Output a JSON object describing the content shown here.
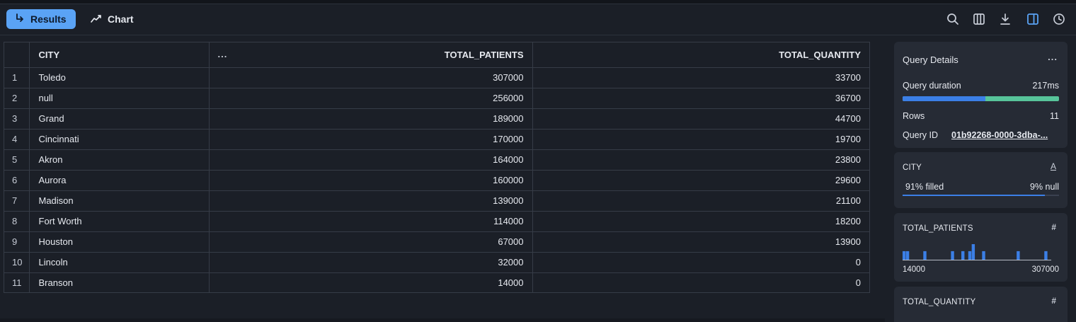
{
  "toolbar": {
    "results_label": "Results",
    "chart_label": "Chart",
    "icons": [
      "search-icon",
      "columns-icon",
      "download-icon",
      "panel-toggle-icon",
      "history-icon"
    ]
  },
  "table": {
    "columns": [
      "CITY",
      "TOTAL_PATIENTS",
      "TOTAL_QUANTITY"
    ],
    "more_label": "...",
    "rows": [
      {
        "idx": "1",
        "city": "Toledo",
        "patients": "307000",
        "quantity": "33700"
      },
      {
        "idx": "2",
        "city": "null",
        "patients": "256000",
        "quantity": "36700"
      },
      {
        "idx": "3",
        "city": "Grand",
        "patients": "189000",
        "quantity": "44700"
      },
      {
        "idx": "4",
        "city": "Cincinnati",
        "patients": "170000",
        "quantity": "19700"
      },
      {
        "idx": "5",
        "city": "Akron",
        "patients": "164000",
        "quantity": "23800"
      },
      {
        "idx": "6",
        "city": "Aurora",
        "patients": "160000",
        "quantity": "29600"
      },
      {
        "idx": "7",
        "city": "Madison",
        "patients": "139000",
        "quantity": "21100"
      },
      {
        "idx": "8",
        "city": "Fort Worth",
        "patients": "114000",
        "quantity": "18200"
      },
      {
        "idx": "9",
        "city": "Houston",
        "patients": "67000",
        "quantity": "13900"
      },
      {
        "idx": "10",
        "city": "Lincoln",
        "patients": "32000",
        "quantity": "0"
      },
      {
        "idx": "11",
        "city": "Branson",
        "patients": "14000",
        "quantity": "0"
      }
    ]
  },
  "query_details": {
    "title": "Query Details",
    "more_label": "...",
    "duration_label": "Query duration",
    "duration_value": "217ms",
    "duration_fraction": 0.53,
    "rows_label": "Rows",
    "rows_value": "11",
    "query_id_label": "Query ID",
    "query_id_value": "01b92268-0000-3dba-..."
  },
  "column_stats": {
    "city": {
      "name": "CITY",
      "type_glyph": "A",
      "filled_label": "91% filled",
      "null_label": "9% null",
      "filled_fraction": 0.91
    },
    "patients": {
      "name": "TOTAL_PATIENTS",
      "type_glyph": "#",
      "min": "14000",
      "max": "307000",
      "histogram": [
        0.55,
        0.55,
        0,
        0,
        0,
        0,
        0.55,
        0,
        0,
        0,
        0,
        0,
        0,
        0,
        0.55,
        0,
        0,
        0.55,
        0,
        0.55,
        1.0,
        0,
        0,
        0.55,
        0,
        0,
        0,
        0,
        0,
        0,
        0,
        0,
        0,
        0.55,
        0,
        0,
        0,
        0,
        0,
        0,
        0,
        0.55,
        0
      ]
    },
    "quantity": {
      "name": "TOTAL_QUANTITY",
      "type_glyph": "#"
    }
  },
  "colors": {
    "accent": "#5aa3f5",
    "bar_blue": "#3b7fe6",
    "bar_green": "#57c49a",
    "background": "#1b1f27",
    "card": "#262b35"
  }
}
